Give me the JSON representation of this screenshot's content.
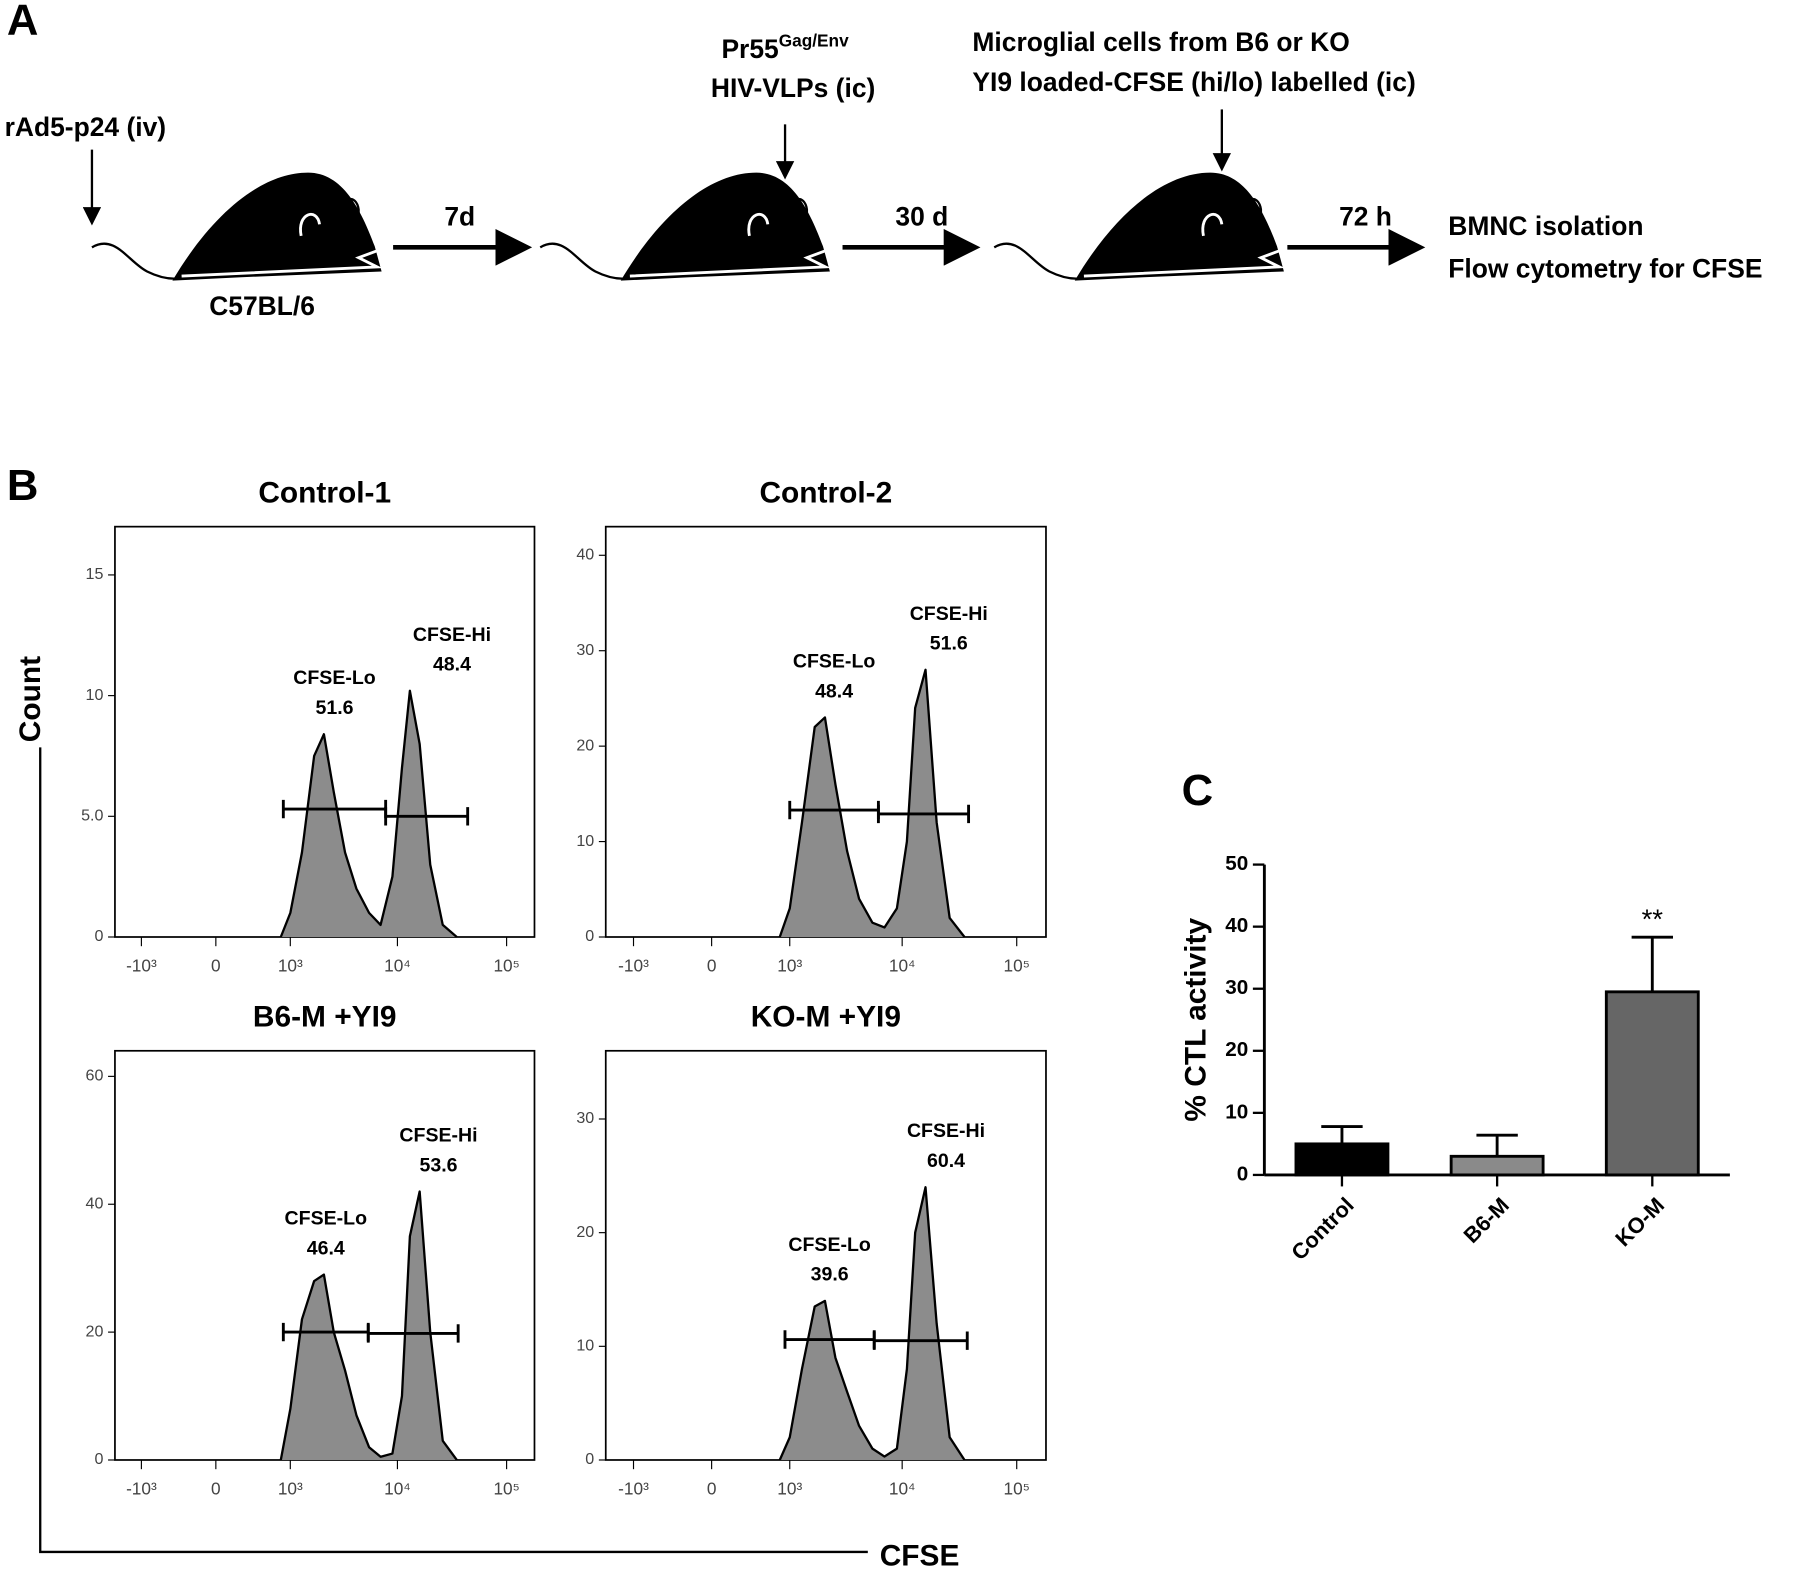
{
  "panel_a": {
    "label": "A",
    "step_1": "rAd5-p24 (iv)",
    "step_2": {
      "text": "Pr55",
      "superscript": "Gag/Env",
      "line_2": "HIV-VLPs (ic)"
    },
    "step_3": {
      "line_1": "Microglial cells from B6 or KO",
      "line_2": "YI9 loaded-CFSE (hi/lo) labelled (ic)"
    },
    "strain": "C57BL/6",
    "intervals": [
      "7d",
      "30 d",
      "72 h"
    ],
    "readout": [
      "BMNC isolation",
      "Flow cytometry for CFSE"
    ]
  },
  "panel_b": {
    "label": "B",
    "y_label": "Count",
    "x_label": "CFSE"
  },
  "panel_c": {
    "label": "C"
  },
  "chart_data": [
    {
      "type": "area",
      "title": "Control-1",
      "color": "#8c8c8c",
      "x": [
        800,
        1000,
        1300,
        1700,
        2100,
        2600,
        3300,
        4200,
        5500,
        7000,
        9000,
        11000,
        13000,
        16000,
        20000,
        26000,
        35000
      ],
      "values": [
        0,
        1,
        3.5,
        7.5,
        8.4,
        6,
        3.5,
        2,
        1,
        0.5,
        2.5,
        7,
        10.2,
        8,
        3,
        0.5,
        0
      ],
      "xlim": [
        -1800,
        180000
      ],
      "ylim": [
        0,
        17
      ],
      "xticks": [
        {
          "value": -1000,
          "label": "-10³"
        },
        0,
        {
          "value": 1000,
          "label": "10³"
        },
        {
          "value": 10000,
          "label": "10⁴"
        },
        {
          "value": 100000,
          "label": "10⁵"
        }
      ],
      "yticks": [
        0,
        {
          "value": 5,
          "label": "5.0"
        },
        10,
        15
      ],
      "gates": [
        {
          "name": "CFSE-Lo",
          "value": 51.6,
          "range": [
            850,
            7800
          ],
          "level": 5.3
        },
        {
          "name": "CFSE-Hi",
          "value": 48.4,
          "range": [
            7800,
            44000
          ],
          "level": 5.0
        }
      ]
    },
    {
      "type": "area",
      "title": "Control-2",
      "color": "#8c8c8c",
      "x": [
        800,
        1000,
        1300,
        1700,
        2100,
        2600,
        3300,
        4200,
        5500,
        7000,
        9000,
        11000,
        13000,
        16000,
        20000,
        26000,
        35000
      ],
      "values": [
        0,
        3,
        12,
        22,
        23,
        16,
        9,
        4,
        1.5,
        1,
        3,
        10,
        24,
        28,
        12,
        2,
        0
      ],
      "xlim": [
        -1800,
        180000
      ],
      "ylim": [
        0,
        43
      ],
      "xticks": [
        {
          "value": -1000,
          "label": "-10³"
        },
        0,
        {
          "value": 1000,
          "label": "10³"
        },
        {
          "value": 10000,
          "label": "10⁴"
        },
        {
          "value": 100000,
          "label": "10⁵"
        }
      ],
      "yticks": [
        0,
        10,
        20,
        30,
        40
      ],
      "gates": [
        {
          "name": "CFSE-Lo",
          "value": 48.4,
          "range": [
            1000,
            6200
          ],
          "level": 13.3
        },
        {
          "name": "CFSE-Hi",
          "value": 51.6,
          "range": [
            6200,
            38000
          ],
          "level": 12.9
        }
      ]
    },
    {
      "type": "area",
      "title": "B6-M +YI9",
      "color": "#8c8c8c",
      "x": [
        800,
        1000,
        1300,
        1700,
        2100,
        2600,
        3300,
        4200,
        5500,
        7000,
        9000,
        11000,
        13000,
        16000,
        20000,
        26000,
        35000
      ],
      "values": [
        0,
        8,
        22,
        28,
        29,
        20,
        14,
        7,
        2,
        0.5,
        1,
        10,
        35,
        42,
        20,
        3,
        0
      ],
      "xlim": [
        -1800,
        180000
      ],
      "ylim": [
        0,
        64
      ],
      "xticks": [
        {
          "value": -1000,
          "label": "-10³"
        },
        0,
        {
          "value": 1000,
          "label": "10³"
        },
        {
          "value": 10000,
          "label": "10⁴"
        },
        {
          "value": 100000,
          "label": "10⁵"
        }
      ],
      "yticks": [
        0,
        20,
        40,
        60
      ],
      "gates": [
        {
          "name": "CFSE-Lo",
          "value": 46.4,
          "range": [
            850,
            5400
          ],
          "level": 20
        },
        {
          "name": "CFSE-Hi",
          "value": 53.6,
          "range": [
            5400,
            36000
          ],
          "level": 19.8
        }
      ]
    },
    {
      "type": "area",
      "title": "KO-M +YI9",
      "color": "#8c8c8c",
      "x": [
        800,
        1000,
        1300,
        1700,
        2100,
        2600,
        3300,
        4200,
        5500,
        7000,
        9000,
        11000,
        13000,
        16000,
        20000,
        26000,
        35000
      ],
      "values": [
        0,
        2,
        8,
        13.5,
        14,
        9,
        6,
        3,
        1,
        0.3,
        1,
        8,
        20,
        24,
        12,
        2,
        0
      ],
      "xlim": [
        -1800,
        180000
      ],
      "ylim": [
        0,
        36
      ],
      "xticks": [
        {
          "value": -1000,
          "label": "-10³"
        },
        0,
        {
          "value": 1000,
          "label": "10³"
        },
        {
          "value": 10000,
          "label": "10⁴"
        },
        {
          "value": 100000,
          "label": "10⁵"
        }
      ],
      "yticks": [
        0,
        10,
        20,
        30
      ],
      "gates": [
        {
          "name": "CFSE-Lo",
          "value": 39.6,
          "range": [
            900,
            5700
          ],
          "level": 10.6
        },
        {
          "name": "CFSE-Hi",
          "value": 60.4,
          "range": [
            5700,
            37000
          ],
          "level": 10.5
        }
      ]
    },
    {
      "type": "bar",
      "y_label": "% CTL activity",
      "categories": [
        "Control",
        "B6-M",
        "KO-M"
      ],
      "values": [
        5,
        3,
        29.5
      ],
      "errors": [
        2.8,
        3.4,
        8.8
      ],
      "colors": [
        "#000000",
        "#8a8a8a",
        "#666666"
      ],
      "ylim": [
        0,
        50
      ],
      "yticks": [
        0,
        10,
        20,
        30,
        40,
        50
      ],
      "annotations": [
        {
          "text": "**",
          "category": "KO-M"
        }
      ]
    }
  ]
}
